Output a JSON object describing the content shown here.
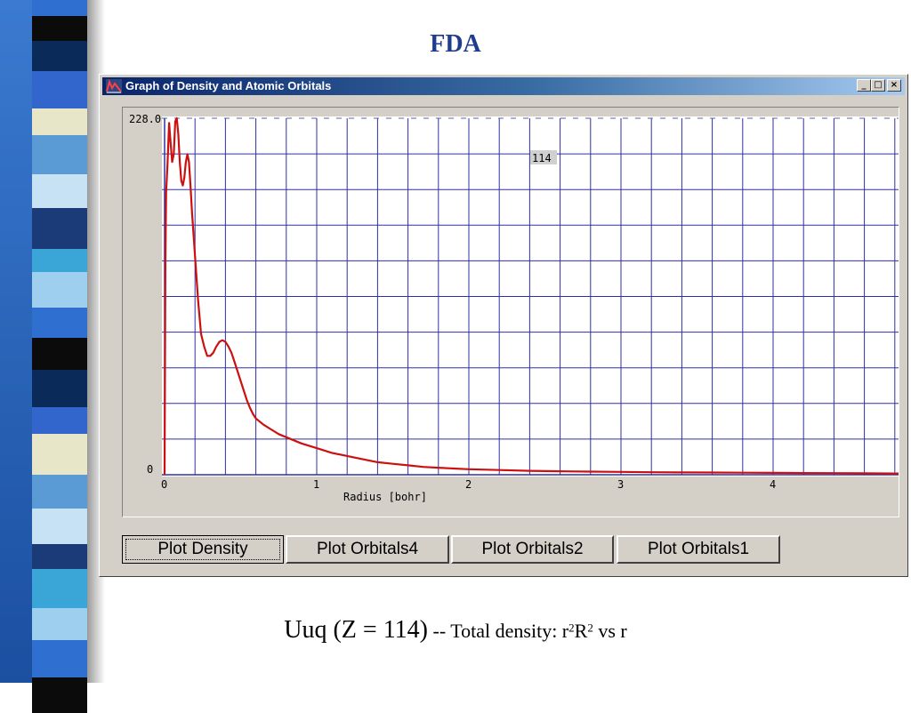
{
  "slide": {
    "title": "FDA",
    "caption_main": "Uuq (Z = 114)",
    "caption_rest_a": " -- Total density:  r",
    "caption_sup_1": "2",
    "caption_rest_b": "R",
    "caption_sup_2": "2",
    "caption_rest_c": "  vs  r"
  },
  "window": {
    "title": "Graph of Density and Atomic Orbitals",
    "minimize_icon": "minimize-icon",
    "maximize_icon": "maximize-icon",
    "close_icon": "close-icon"
  },
  "buttons": [
    {
      "label": "Plot Density",
      "active": true
    },
    {
      "label": "Plot Orbitals4",
      "active": false
    },
    {
      "label": "Plot Orbitals2",
      "active": false
    },
    {
      "label": "Plot Orbitals1",
      "active": false
    }
  ],
  "colors": {
    "curve": "#cc1010",
    "grid": "#3030a0",
    "title": "#1f3d8f"
  },
  "chart_data": {
    "type": "line",
    "xlabel": "Radius [bohr]",
    "ylabel": "",
    "xlim": [
      0,
      4.8
    ],
    "ylim": [
      0,
      228
    ],
    "y_max_label": "228.0",
    "y_min_label": "0",
    "x_ticks": [
      0,
      1,
      2,
      3,
      4
    ],
    "annotation": "114",
    "grid": true,
    "series": [
      {
        "name": "",
        "x": [
          0,
          0.005,
          0.01,
          0.02,
          0.03,
          0.04,
          0.05,
          0.06,
          0.07,
          0.08,
          0.09,
          0.1,
          0.11,
          0.12,
          0.13,
          0.14,
          0.15,
          0.16,
          0.17,
          0.18,
          0.2,
          0.22,
          0.24,
          0.26,
          0.28,
          0.3,
          0.32,
          0.34,
          0.36,
          0.38,
          0.4,
          0.42,
          0.44,
          0.46,
          0.48,
          0.5,
          0.52,
          0.54,
          0.56,
          0.58,
          0.6,
          0.65,
          0.7,
          0.75,
          0.8,
          0.9,
          1.0,
          1.1,
          1.2,
          1.3,
          1.4,
          1.5,
          1.6,
          1.7,
          1.8,
          1.9,
          2.0,
          2.2,
          2.4,
          2.6,
          2.8,
          3.0,
          3.2,
          3.4,
          3.6,
          3.8,
          4.0,
          4.2,
          4.4,
          4.6,
          4.8
        ],
        "y": [
          0,
          135,
          180,
          200,
          225,
          212,
          200,
          205,
          226,
          228,
          218,
          200,
          188,
          185,
          190,
          200,
          205,
          200,
          185,
          168,
          140,
          112,
          90,
          82,
          76,
          76,
          78,
          82,
          85,
          86,
          85,
          82,
          78,
          72,
          66,
          60,
          54,
          48,
          43,
          39,
          36,
          32,
          29,
          26,
          24,
          20,
          17,
          14,
          12,
          10,
          8,
          7,
          6,
          5,
          4.5,
          4,
          3.5,
          3,
          2.5,
          2.2,
          2,
          1.8,
          1.6,
          1.5,
          1.4,
          1.3,
          1.2,
          1.1,
          1.0,
          0.9,
          0.8
        ]
      }
    ]
  }
}
